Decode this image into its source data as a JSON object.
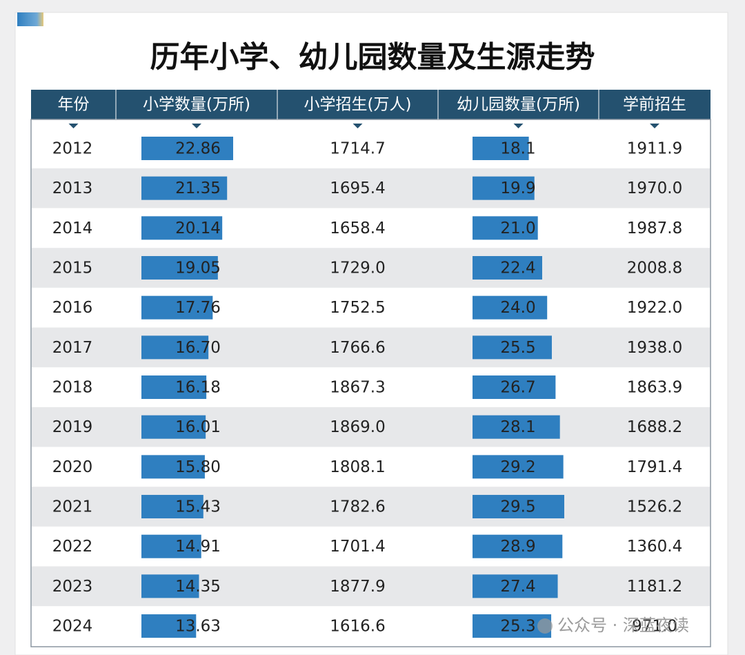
{
  "title": "历年小学、幼儿园数量及生源走势",
  "table": {
    "headers": [
      "年份",
      "小学数量(万所)",
      "小学招生(万人)",
      "幼儿园数量(万所)",
      "学前招生"
    ],
    "rows": [
      [
        "2012",
        "22.86",
        "1714.7",
        "18.1",
        "1911.9"
      ],
      [
        "2013",
        "21.35",
        "1695.4",
        "19.9",
        "1970.0"
      ],
      [
        "2014",
        "20.14",
        "1658.4",
        "21.0",
        "1987.8"
      ],
      [
        "2015",
        "19.05",
        "1729.0",
        "22.4",
        "2008.8"
      ],
      [
        "2016",
        "17.76",
        "1752.5",
        "24.0",
        "1922.0"
      ],
      [
        "2017",
        "16.70",
        "1766.6",
        "25.5",
        "1938.0"
      ],
      [
        "2018",
        "16.18",
        "1867.3",
        "26.7",
        "1863.9"
      ],
      [
        "2019",
        "16.01",
        "1869.0",
        "28.1",
        "1688.2"
      ],
      [
        "2020",
        "15.80",
        "1808.1",
        "29.2",
        "1791.4"
      ],
      [
        "2021",
        "15.43",
        "1782.6",
        "29.5",
        "1526.2"
      ],
      [
        "2022",
        "14.91",
        "1701.4",
        "28.9",
        "1360.4"
      ],
      [
        "2023",
        "14.35",
        "1877.9",
        "27.4",
        "1181.2"
      ],
      [
        "2024",
        "13.63",
        "1616.6",
        "25.3",
        "971.0"
      ]
    ]
  },
  "watermark": "公众号 · 深蓝夜读"
}
